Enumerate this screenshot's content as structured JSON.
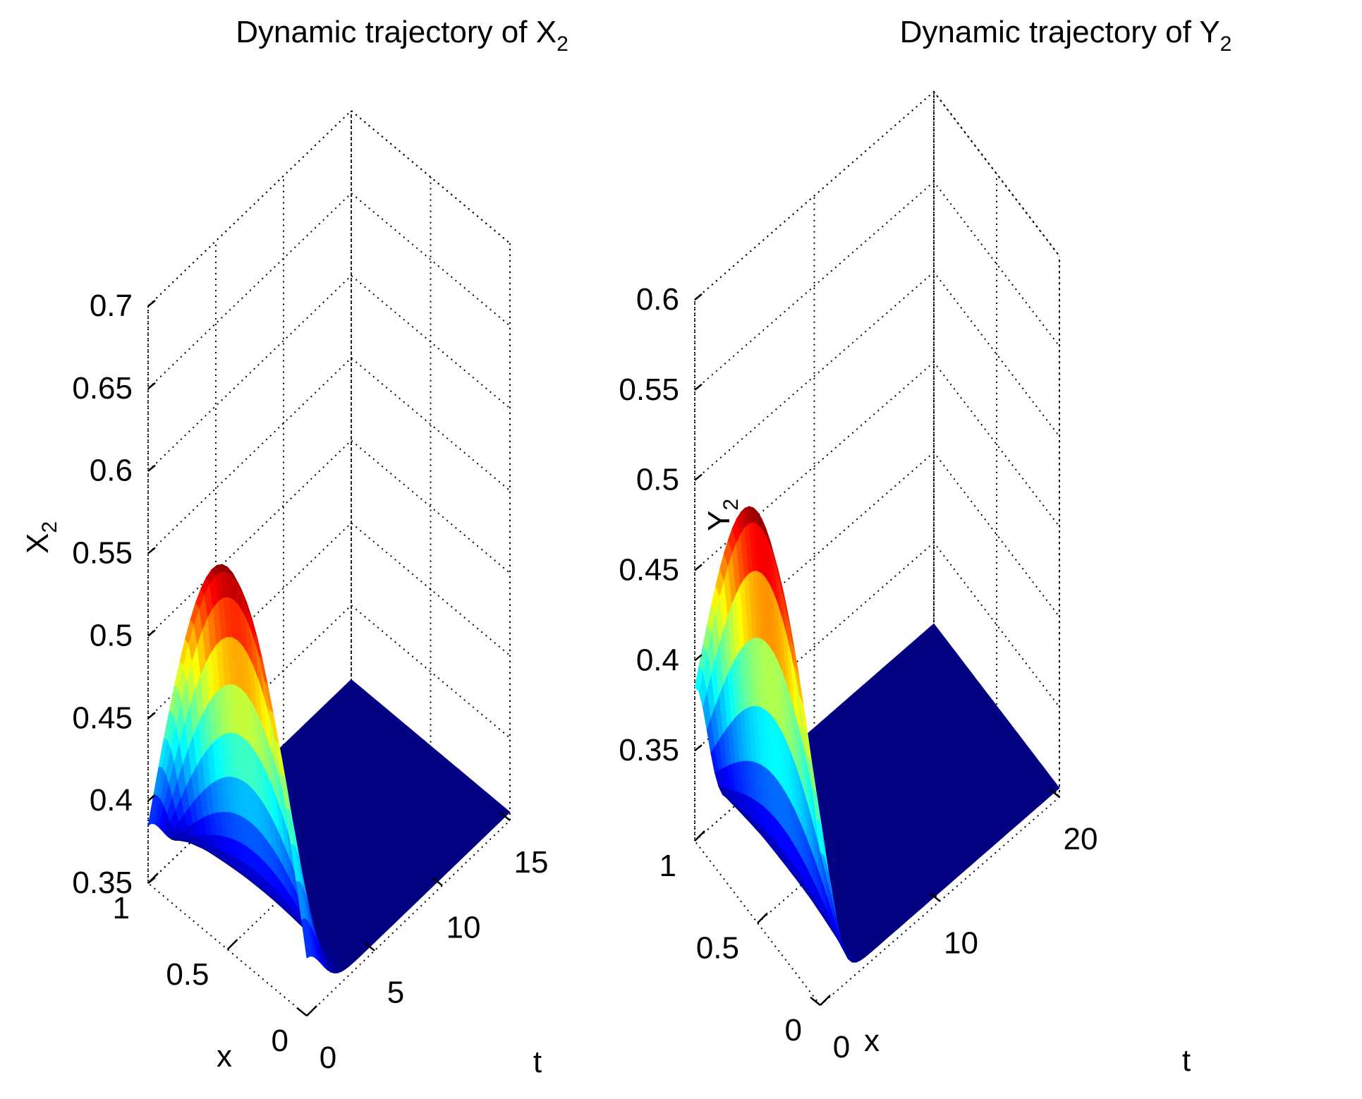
{
  "chart_data": [
    {
      "type": "surface",
      "title_prefix": "Dynamic trajectory of ",
      "title_var": "X",
      "title_sub": "2",
      "xlabel": "t",
      "ylabel": "x",
      "zlabel_var": "X",
      "zlabel_sub": "2",
      "t_range": [
        0,
        15
      ],
      "x_range": [
        0,
        1
      ],
      "z_range": [
        0.35,
        0.7
      ],
      "t_ticks": [
        "0",
        "5",
        "10",
        "15"
      ],
      "x_ticks": [
        "0",
        "0.5",
        "1"
      ],
      "z_ticks": [
        "0.35",
        "0.4",
        "0.45",
        "0.5",
        "0.55",
        "0.6",
        "0.65",
        "0.7"
      ],
      "grid": true,
      "colormap": "jet",
      "surface": {
        "z_at_x0": 0.385,
        "peak_value": 0.582,
        "peak_x": 0.5,
        "peak_t": 0.0,
        "t_peak_decay_end": 3.0,
        "steady_value": 0.355
      }
    },
    {
      "type": "surface",
      "title_prefix": "Dynamic trajectory of ",
      "title_var": "Y",
      "title_sub": "2",
      "xlabel": "t",
      "ylabel": "x",
      "zlabel_var": "Y",
      "zlabel_sub": "2",
      "t_range": [
        0,
        20
      ],
      "x_range": [
        0,
        1
      ],
      "z_range": [
        0.3,
        0.6
      ],
      "t_ticks": [
        "0",
        "10",
        "20"
      ],
      "x_ticks": [
        "0",
        "0.5",
        "1"
      ],
      "z_ticks": [
        "0.35",
        "0.4",
        "0.45",
        "0.5",
        "0.55",
        "0.6"
      ],
      "grid": true,
      "colormap": "jet",
      "surface": {
        "z_at_x0": 0.385,
        "peak_value": 0.528,
        "peak_x": 0.5,
        "peak_t": 0.0,
        "t_peak_decay_end": 3.0,
        "steady_value": 0.305
      }
    }
  ]
}
